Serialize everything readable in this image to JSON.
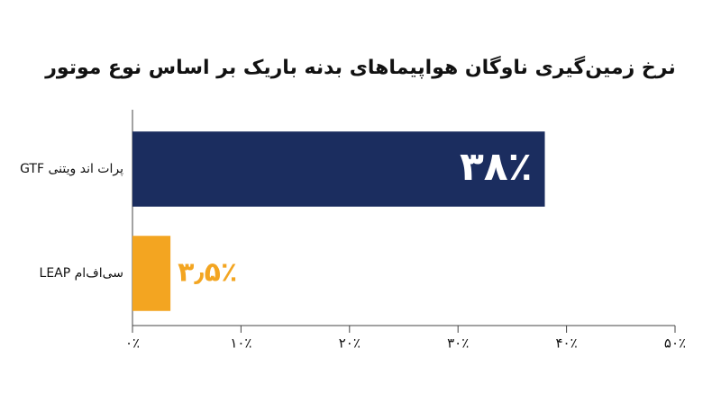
{
  "chart_data": {
    "type": "barh",
    "title": "نرخ زمین‌گیری ناوگان هواپیماهای بدنه باریک بر اساس نوع موتور",
    "categories": [
      "پرات اند ویتنی GTF",
      "سی‌اف‌ام LEAP"
    ],
    "values": [
      38,
      3.5
    ],
    "value_labels": [
      "۳۸٪",
      "۳٫۵٪"
    ],
    "colors": [
      "#1b2d5f",
      "#f3a521"
    ],
    "xlim": [
      0,
      50
    ],
    "xticks": [
      {
        "value": 0,
        "label": "۰٪"
      },
      {
        "value": 10,
        "label": "۱۰٪"
      },
      {
        "value": 20,
        "label": "۲۰٪"
      },
      {
        "value": 30,
        "label": "۳۰٪"
      },
      {
        "value": 40,
        "label": "۴۰٪"
      },
      {
        "value": 50,
        "label": "۵۰٪"
      }
    ],
    "grid": false
  }
}
